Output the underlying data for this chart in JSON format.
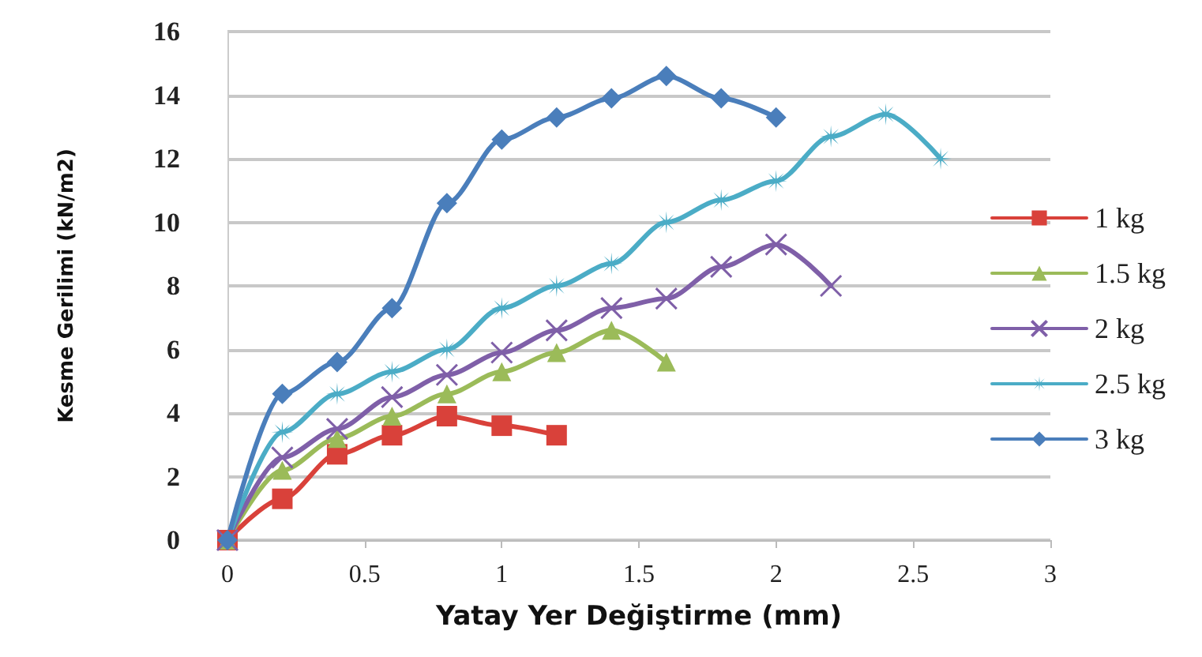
{
  "chart_data": {
    "type": "line",
    "xlabel": "Yatay Yer Değiştirme (mm)",
    "ylabel": "Kesme Gerilimi (kN/m2)",
    "xlim": [
      0,
      3
    ],
    "xticks": [
      0,
      0.5,
      1,
      1.5,
      2,
      2.5,
      3
    ],
    "ylim": [
      0,
      16
    ],
    "yticks": [
      0,
      2,
      4,
      6,
      8,
      10,
      12,
      14,
      16
    ],
    "grid": "y",
    "legend": "right",
    "series": [
      {
        "name": "1 kg",
        "color": "#d9413a",
        "marker": "square",
        "x": [
          0,
          0.2,
          0.4,
          0.6,
          0.8,
          1.0,
          1.2
        ],
        "values": [
          0,
          1.3,
          2.7,
          3.3,
          3.9,
          3.6,
          3.3
        ]
      },
      {
        "name": "1.5 kg",
        "color": "#9bbb59",
        "marker": "triangle",
        "x": [
          0,
          0.2,
          0.4,
          0.6,
          0.8,
          1.0,
          1.2,
          1.4,
          1.6
        ],
        "values": [
          0,
          2.2,
          3.2,
          3.9,
          4.6,
          5.3,
          5.9,
          6.6,
          5.6
        ]
      },
      {
        "name": "2 kg",
        "color": "#7f5fa8",
        "marker": "cross",
        "x": [
          0,
          0.2,
          0.4,
          0.6,
          0.8,
          1.0,
          1.2,
          1.4,
          1.6,
          1.8,
          2.0,
          2.2
        ],
        "values": [
          0,
          2.6,
          3.5,
          4.5,
          5.2,
          5.9,
          6.6,
          7.3,
          7.6,
          8.6,
          9.3,
          8.0
        ]
      },
      {
        "name": "2.5 kg",
        "color": "#4bacc6",
        "marker": "star",
        "x": [
          0,
          0.2,
          0.4,
          0.6,
          0.8,
          1.0,
          1.2,
          1.4,
          1.6,
          1.8,
          2.0,
          2.2,
          2.4,
          2.6
        ],
        "values": [
          0,
          3.4,
          4.6,
          5.3,
          6.0,
          7.3,
          8.0,
          8.7,
          10.0,
          10.7,
          11.3,
          12.7,
          13.4,
          12.0
        ]
      },
      {
        "name": "3 kg",
        "color": "#4a7ebb",
        "marker": "diamond",
        "x": [
          0,
          0.2,
          0.4,
          0.6,
          0.8,
          1.0,
          1.2,
          1.4,
          1.6,
          1.8,
          2.0
        ],
        "values": [
          0,
          4.6,
          5.6,
          7.3,
          10.6,
          12.6,
          13.3,
          13.9,
          14.6,
          13.9,
          13.3
        ]
      }
    ]
  }
}
